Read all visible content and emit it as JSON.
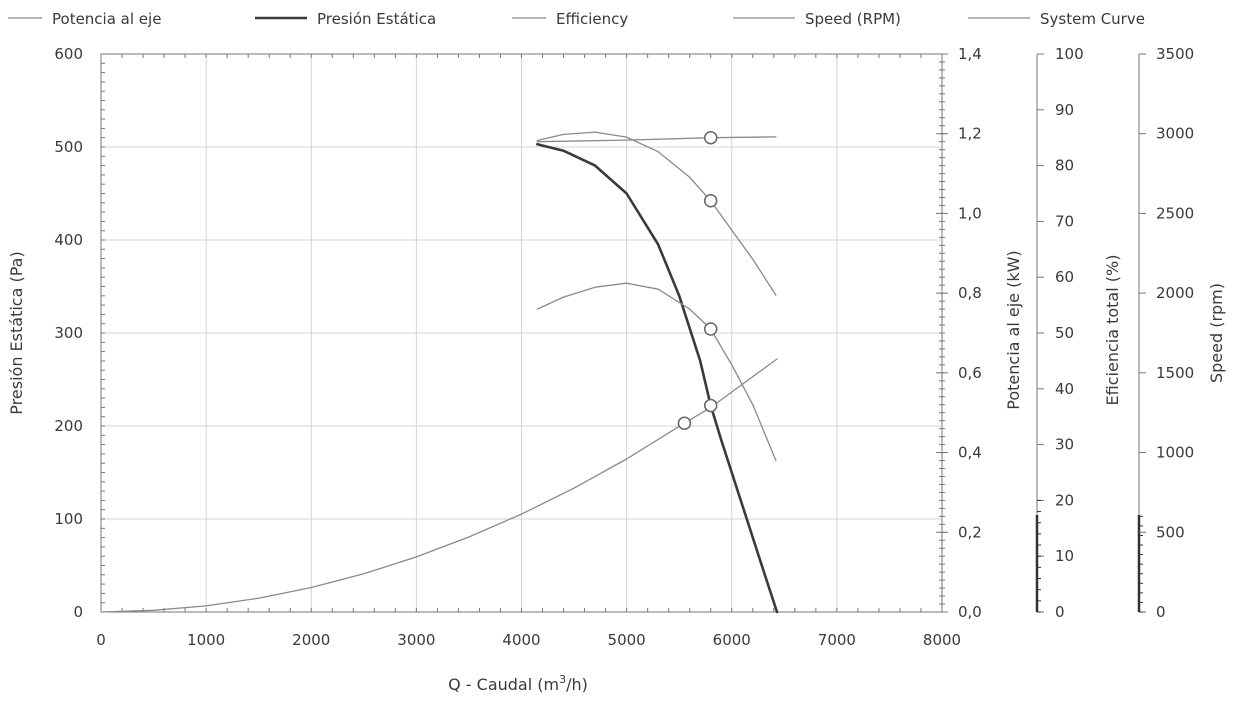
{
  "colors": {
    "grid": "#d4d4d4",
    "axis": "#777777",
    "text": "#3a3a3a",
    "pressure": "#3a3a3a",
    "power": "#8a8a8a",
    "efficiency": "#8a8a8a",
    "speed": "#8a8a8a",
    "system": "#8a8a8a",
    "marker_fill": "#ffffff"
  },
  "chart_data": {
    "type": "line",
    "title": "",
    "legend_position": "top",
    "grid": true,
    "legend": [
      {
        "key": "power",
        "label": "Potencia al eje"
      },
      {
        "key": "pressure",
        "label": "Presión Estática"
      },
      {
        "key": "efficiency",
        "label": "Efficiency"
      },
      {
        "key": "speed",
        "label": "Speed (RPM)"
      },
      {
        "key": "system",
        "label": "System Curve"
      }
    ],
    "xaxis": {
      "label_main": "Q - Caudal (m",
      "label_sup": "3",
      "label_tail": "/h)",
      "min": 0,
      "max": 8000,
      "ticks": [
        0,
        1000,
        2000,
        3000,
        4000,
        5000,
        6000,
        7000,
        8000
      ],
      "tick_labels": [
        "0",
        "1000",
        "2000",
        "3000",
        "4000",
        "5000",
        "6000",
        "7000",
        "8000"
      ]
    },
    "axes": {
      "pressure": {
        "label": "Presión Estática (Pa)",
        "min": 0,
        "max": 600,
        "ticks": [
          0,
          100,
          200,
          300,
          400,
          500,
          600
        ],
        "tick_labels": [
          "0",
          "100",
          "200",
          "300",
          "400",
          "500",
          "600"
        ]
      },
      "power": {
        "label": "Potencia al eje (kW)",
        "min": 0,
        "max": 1.4,
        "ticks": [
          0,
          0.2,
          0.4,
          0.6,
          0.8,
          1.0,
          1.2,
          1.4
        ],
        "tick_labels": [
          "0,0",
          "0,2",
          "0,4",
          "0,6",
          "0,8",
          "1,0",
          "1,2",
          "1,4"
        ]
      },
      "efficiency": {
        "label": "Eficiencia total (%)",
        "min": 0,
        "max": 100,
        "ticks": [
          0,
          10,
          20,
          30,
          40,
          50,
          60,
          70,
          80,
          90,
          100
        ],
        "tick_labels": [
          "0",
          "10",
          "20",
          "30",
          "40",
          "50",
          "60",
          "70",
          "80",
          "90",
          "100"
        ]
      },
      "speed": {
        "label": "Speed (rpm)",
        "min": 0,
        "max": 3500,
        "ticks": [
          0,
          500,
          1000,
          1500,
          2000,
          2500,
          3000,
          3500
        ],
        "tick_labels": [
          "0",
          "500",
          "1000",
          "1500",
          "2000",
          "2500",
          "3000",
          "3500"
        ]
      }
    },
    "series": [
      {
        "key": "pressure",
        "name": "Presión Estática",
        "axis": "pressure",
        "width": 2.6,
        "x": [
          4150,
          4400,
          4700,
          5000,
          5300,
          5500,
          5700,
          5800,
          5900,
          6100,
          6300,
          6430
        ],
        "y": [
          503,
          496,
          480,
          450,
          395,
          340,
          270,
          222,
          185,
          115,
          45,
          0
        ]
      },
      {
        "key": "power",
        "name": "Potencia al eje",
        "axis": "power",
        "width": 1.3,
        "x": [
          4150,
          4400,
          4700,
          5000,
          5300,
          5600,
          5800,
          6000,
          6200,
          6420
        ],
        "y": [
          0.76,
          0.79,
          0.815,
          0.825,
          0.81,
          0.76,
          0.71,
          0.62,
          0.52,
          0.38
        ]
      },
      {
        "key": "efficiency",
        "name": "Efficiency",
        "axis": "efficiency",
        "width": 1.3,
        "x": [
          4150,
          4400,
          4700,
          5000,
          5300,
          5600,
          5800,
          6000,
          6200,
          6420
        ],
        "y": [
          84.5,
          85.6,
          86.0,
          85.1,
          82.5,
          77.9,
          73.7,
          68.4,
          63.2,
          56.8
        ]
      },
      {
        "key": "speed",
        "name": "Speed (RPM)",
        "axis": "speed",
        "width": 1.3,
        "x": [
          4150,
          5000,
          5800,
          6420
        ],
        "y": [
          2950,
          2960,
          2975,
          2980
        ]
      },
      {
        "key": "system",
        "name": "System Curve",
        "axis": "pressure",
        "width": 1.3,
        "x": [
          0,
          500,
          1000,
          1500,
          2000,
          2500,
          3000,
          3500,
          4000,
          4500,
          5000,
          5550,
          5800,
          6430
        ],
        "y": [
          0,
          1.8,
          6.6,
          14.8,
          26.3,
          41.1,
          59.2,
          80.6,
          105.3,
          133.2,
          164.5,
          203,
          220,
          272
        ]
      }
    ],
    "markers": [
      {
        "axis": "pressure",
        "x": 5800,
        "y": 222
      },
      {
        "axis": "pressure",
        "x": 5550,
        "y": 203
      },
      {
        "axis": "power",
        "x": 5800,
        "y": 0.71
      },
      {
        "axis": "efficiency",
        "x": 5800,
        "y": 73.7
      },
      {
        "axis": "speed",
        "x": 5800,
        "y": 2975
      }
    ]
  }
}
